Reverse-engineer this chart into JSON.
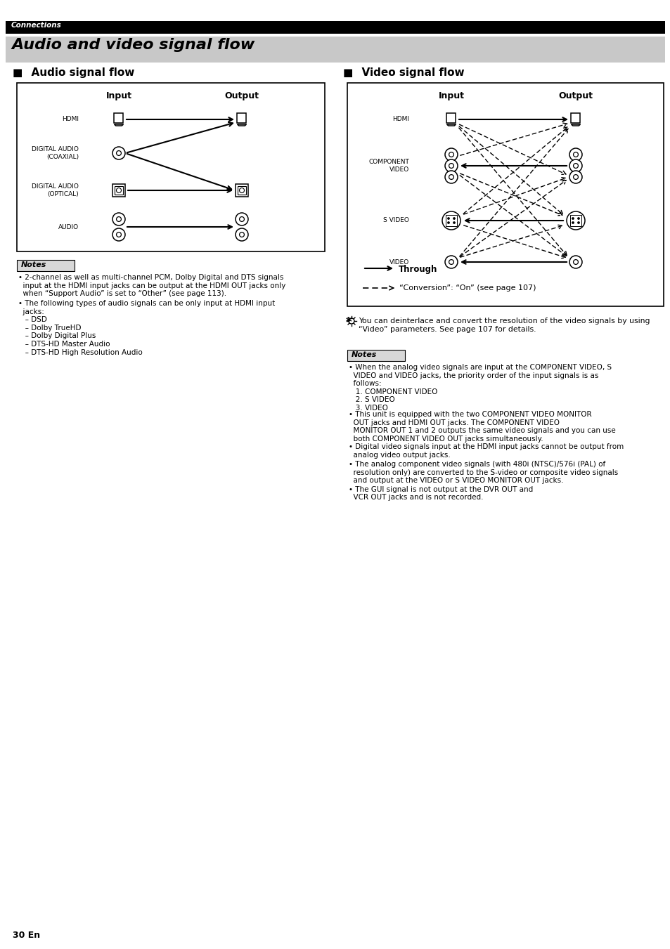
{
  "header_text": "Connections",
  "title_text": "Audio and video signal flow",
  "audio_title": "Audio signal flow",
  "video_title": "Video signal flow",
  "through_label": "Through",
  "conversion_label": "“Conversion”: “On” (see page 107)",
  "tip_text": "You can deinterlace and convert the resolution of the video signals by using\n“Video” parameters. See page 107 for details.",
  "audio_row_labels": [
    "HDMI",
    "DIGITAL AUDIO\n(COAXIAL)",
    "DIGITAL AUDIO\n(OPTICAL)",
    "AUDIO"
  ],
  "video_row_labels": [
    "HDMI",
    "COMPONENT\nVIDEO",
    "S VIDEO",
    "VIDEO"
  ],
  "notes_audio": [
    "2-channel as well as multi-channel PCM, Dolby Digital and DTS signals input at the HDMI input jacks can be output at the HDMI OUT jacks only when “Support Audio” is set to “Other” (see page 113).",
    "The following types of audio signals can be only input at HDMI input jacks:\n– DSD\n– Dolby TrueHD\n– Dolby Digital Plus\n– DTS-HD Master Audio\n– DTS-HD High Resolution Audio"
  ],
  "notes_video": [
    "When the analog video signals are input at the COMPONENT VIDEO, S VIDEO and VIDEO jacks, the priority order of the input signals is as follows:\n1. COMPONENT VIDEO\n2. S VIDEO\n3. VIDEO",
    "This unit is equipped with the two COMPONENT VIDEO MONITOR OUT jacks and HDMI OUT jacks. The COMPONENT VIDEO MONITOR OUT 1 and 2 outputs the same video signals and you can use both COMPONENT VIDEO OUT jacks simultaneously.",
    "Digital video signals input at the HDMI input jacks cannot be output from analog video output jacks.",
    "The analog component video signals (with 480i (NTSC)/576i (PAL) of resolution only) are converted to the S-video or composite video signals and output at the VIDEO or S VIDEO MONITOR OUT jacks.",
    "The GUI signal is not output at the DVR OUT and VCR OUT jacks and is not recorded."
  ],
  "page_number": "30 En"
}
